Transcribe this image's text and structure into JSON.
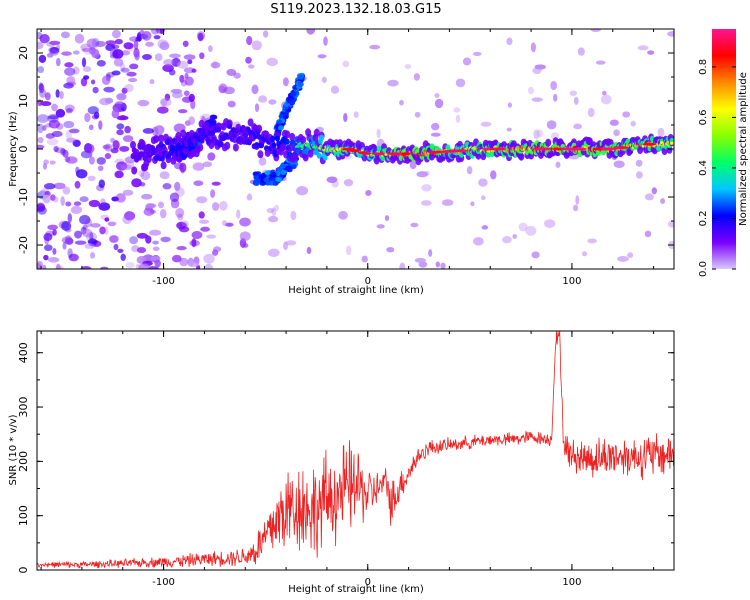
{
  "title": "S119.2023.132.18.03.G15",
  "colors": {
    "snr_line": "#ee2222",
    "colormap": [
      "#d9c8f8",
      "#7a00ff",
      "#0000ff",
      "#00c8ff",
      "#00ff66",
      "#88ff00",
      "#ffff00",
      "#ff8800",
      "#ff0000",
      "#ff1493"
    ]
  },
  "chart_data": [
    {
      "id": "spectrogram",
      "type": "heatmap",
      "xlabel": "Height of straight line (km)",
      "ylabel": "Frequency (Hz)",
      "xlim": [
        -162,
        150
      ],
      "ylim": [
        -25,
        25
      ],
      "xticks": [
        -100,
        0,
        100
      ],
      "xtick_labels": [
        "-100",
        "0",
        "100"
      ],
      "yticks": [
        -20,
        -10,
        0,
        10,
        20
      ],
      "ytick_labels": [
        "-20",
        "-10",
        "0",
        "10",
        "20"
      ],
      "colorbar": {
        "label": "Normalized spectral amplitude",
        "range": [
          0.0,
          0.95
        ],
        "ticks": [
          0.0,
          0.2,
          0.4,
          0.6,
          0.8
        ],
        "tick_labels": [
          "0.0",
          "0.2",
          "0.4",
          "0.6",
          "0.8"
        ]
      },
      "ridge": [
        {
          "x": -110,
          "f": -1.5,
          "amp": 0.25
        },
        {
          "x": -95,
          "f": 0.0,
          "amp": 0.35
        },
        {
          "x": -80,
          "f": 2.5,
          "amp": 0.3
        },
        {
          "x": -60,
          "f": 3.0,
          "amp": 0.3
        },
        {
          "x": -50,
          "f": 1.0,
          "amp": 0.35
        },
        {
          "x": -40,
          "f": 0.5,
          "amp": 0.4
        },
        {
          "x": -30,
          "f": 0.8,
          "amp": 0.5
        },
        {
          "x": -20,
          "f": 0.0,
          "amp": 0.6
        },
        {
          "x": -10,
          "f": 0.0,
          "amp": 0.75
        },
        {
          "x": 0,
          "f": -1.0,
          "amp": 0.6
        },
        {
          "x": 10,
          "f": -1.0,
          "amp": 0.8
        },
        {
          "x": 20,
          "f": -1.0,
          "amp": 0.9
        },
        {
          "x": 40,
          "f": -0.5,
          "amp": 0.7
        },
        {
          "x": 60,
          "f": 0.0,
          "amp": 0.75
        },
        {
          "x": 80,
          "f": 0.0,
          "amp": 0.85
        },
        {
          "x": 100,
          "f": 0.0,
          "amp": 0.85
        },
        {
          "x": 120,
          "f": 0.0,
          "amp": 0.8
        },
        {
          "x": 135,
          "f": 1.0,
          "amp": 0.75
        },
        {
          "x": 148,
          "f": 1.0,
          "amp": 0.7
        }
      ],
      "branches": [
        {
          "x": [
            -45,
            -38,
            -32
          ],
          "f": [
            3,
            10,
            15
          ],
          "amp": 0.3
        },
        {
          "x": [
            -55,
            -45,
            -35
          ],
          "f": [
            -6,
            -6,
            -2
          ],
          "amp": 0.3
        },
        {
          "x": [
            -95,
            -85,
            -75
          ],
          "f": [
            -2,
            1,
            6
          ],
          "amp": 0.25
        }
      ]
    },
    {
      "id": "snr",
      "type": "line",
      "xlabel": "Height of straight line (km)",
      "ylabel": "SNR (10 * v/v)",
      "xlim": [
        -162,
        150
      ],
      "ylim": [
        0,
        440
      ],
      "xticks": [
        -100,
        0,
        100
      ],
      "xtick_labels": [
        "-100",
        "0",
        "100"
      ],
      "yticks": [
        0,
        100,
        200,
        300,
        400
      ],
      "ytick_labels": [
        "0",
        "100",
        "200",
        "300",
        "400"
      ],
      "series": [
        {
          "x": [
            -162,
            -140,
            -120,
            -100,
            -90,
            -80,
            -70,
            -60,
            -55,
            -50,
            -45,
            -40,
            -35,
            -30,
            -25,
            -20,
            -15,
            -10,
            -5,
            0,
            5,
            8,
            10,
            12,
            15,
            20,
            25,
            30,
            40,
            50,
            60,
            70,
            80,
            90,
            92,
            94,
            96,
            100,
            110,
            120,
            130,
            140,
            150
          ],
          "y": [
            10,
            10,
            12,
            15,
            17,
            20,
            22,
            25,
            35,
            60,
            90,
            110,
            120,
            115,
            110,
            130,
            140,
            150,
            155,
            140,
            150,
            160,
            150,
            120,
            150,
            180,
            210,
            225,
            230,
            235,
            240,
            240,
            245,
            240,
            420,
            430,
            230,
            210,
            205,
            210,
            210,
            210,
            215
          ],
          "noise": [
            4,
            5,
            6,
            8,
            10,
            10,
            12,
            15,
            25,
            40,
            55,
            65,
            70,
            70,
            70,
            70,
            70,
            70,
            60,
            40,
            25,
            25,
            30,
            40,
            25,
            20,
            15,
            12,
            10,
            10,
            10,
            10,
            10,
            10,
            15,
            15,
            20,
            25,
            30,
            30,
            30,
            35,
            30
          ]
        }
      ]
    }
  ]
}
